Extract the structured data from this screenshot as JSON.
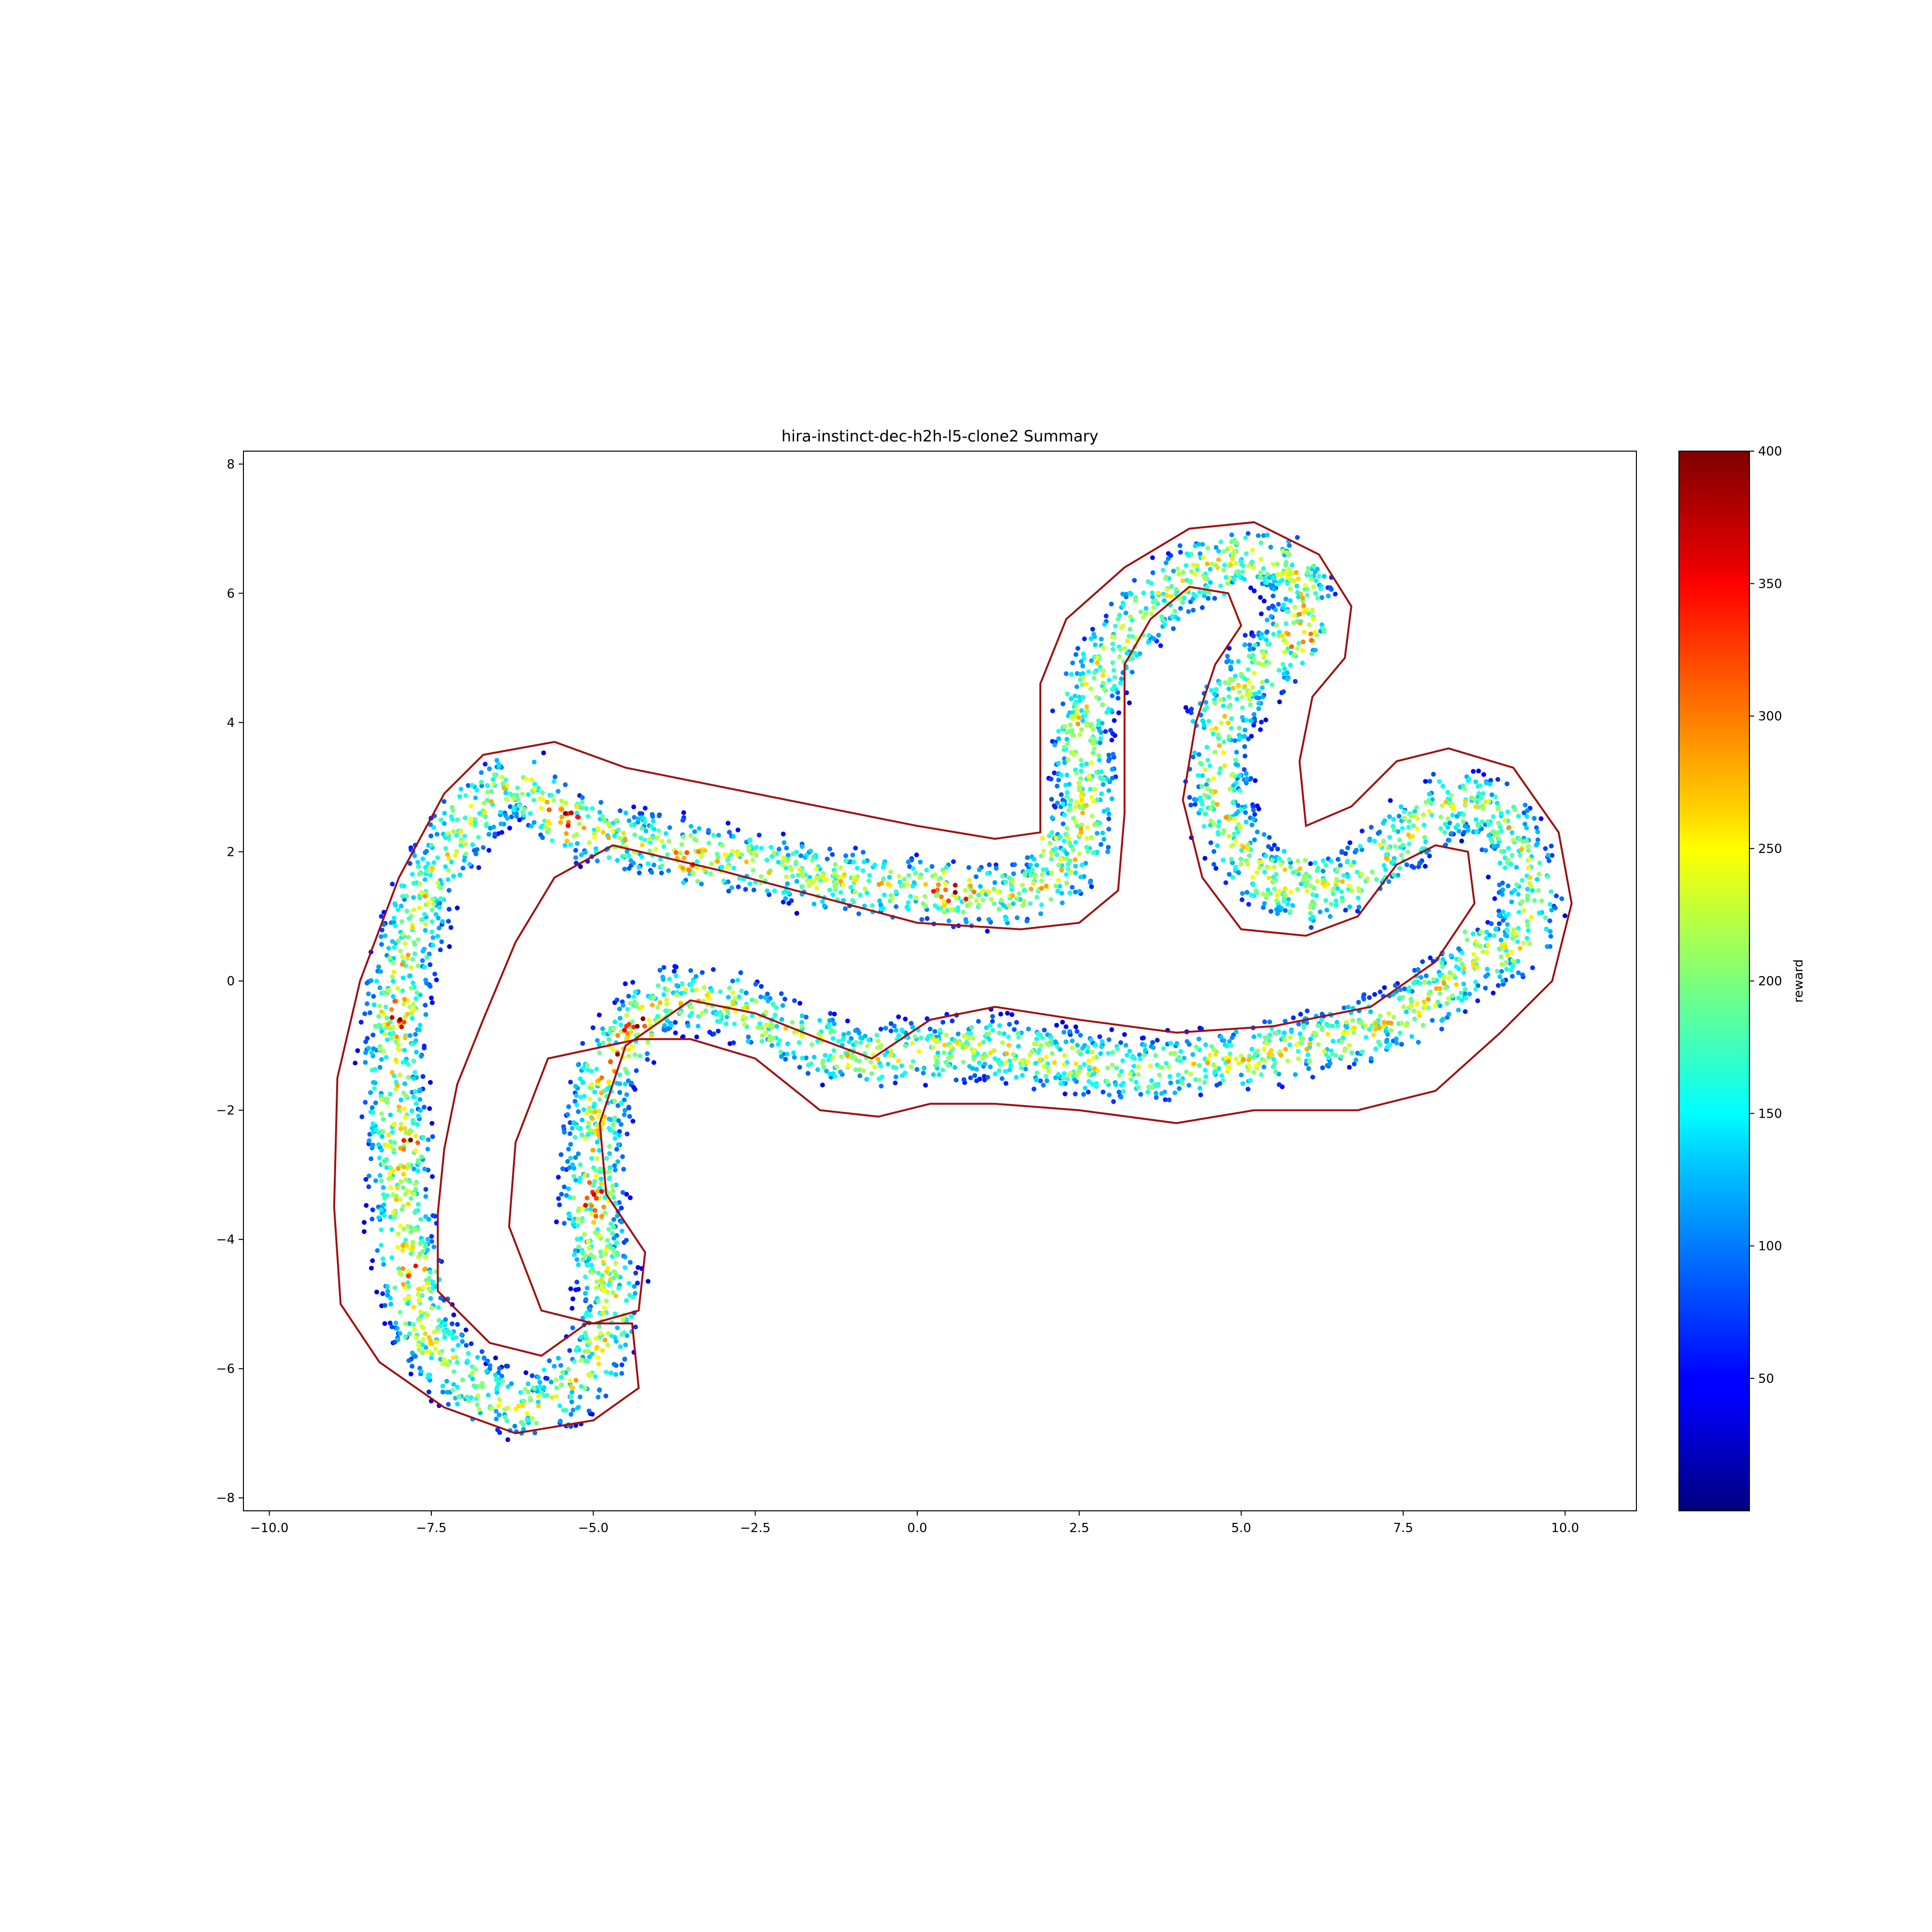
{
  "chart_data": {
    "type": "scatter",
    "title": "hira-instinct-dec-h2h-l5-clone2 Summary",
    "xlabel": "",
    "ylabel": "",
    "xlim": [
      -10.4,
      11.1
    ],
    "ylim": [
      -8.2,
      8.2
    ],
    "x_ticks": [
      -10.0,
      -7.5,
      -5.0,
      -2.5,
      0.0,
      2.5,
      5.0,
      7.5,
      10.0
    ],
    "x_tick_labels": [
      "−10.0",
      "−7.5",
      "−5.0",
      "−2.5",
      "0.0",
      "2.5",
      "5.0",
      "7.5",
      "10.0"
    ],
    "y_ticks": [
      -8,
      -6,
      -4,
      -2,
      0,
      2,
      4,
      6,
      8
    ],
    "y_tick_labels": [
      "−8",
      "−6",
      "−4",
      "−2",
      "0",
      "2",
      "4",
      "6",
      "8"
    ],
    "grid": false,
    "colormap": "jet",
    "colorbar": {
      "label": "reward",
      "range": [
        0,
        400
      ],
      "ticks": [
        50,
        100,
        150,
        200,
        250,
        300,
        350,
        400
      ],
      "tick_labels": [
        "50",
        "100",
        "150",
        "200",
        "250",
        "300",
        "350",
        "400"
      ]
    },
    "track_centerline": [
      [
        -5.4,
        2.4
      ],
      [
        -4.5,
        2.2
      ],
      [
        -3.0,
        1.9
      ],
      [
        -1.5,
        1.6
      ],
      [
        0.0,
        1.4
      ],
      [
        1.2,
        1.3
      ],
      [
        1.9,
        1.4
      ],
      [
        2.5,
        2.0
      ],
      [
        2.6,
        3.0
      ],
      [
        2.5,
        4.0
      ],
      [
        2.9,
        5.0
      ],
      [
        3.6,
        5.8
      ],
      [
        4.4,
        6.4
      ],
      [
        5.0,
        6.6
      ],
      [
        5.8,
        6.4
      ],
      [
        6.0,
        5.8
      ],
      [
        5.6,
        5.1
      ],
      [
        5.0,
        4.6
      ],
      [
        4.6,
        3.8
      ],
      [
        4.7,
        2.6
      ],
      [
        5.2,
        1.7
      ],
      [
        5.9,
        1.3
      ],
      [
        6.8,
        1.6
      ],
      [
        7.6,
        2.3
      ],
      [
        8.3,
        2.8
      ],
      [
        9.0,
        2.6
      ],
      [
        9.5,
        1.5
      ],
      [
        9.3,
        0.6
      ],
      [
        8.5,
        0.2
      ],
      [
        7.6,
        -0.5
      ],
      [
        6.5,
        -0.9
      ],
      [
        5.0,
        -1.2
      ],
      [
        3.5,
        -1.4
      ],
      [
        2.0,
        -1.2
      ],
      [
        1.0,
        -1.0
      ],
      [
        0.0,
        -1.1
      ],
      [
        -1.0,
        -1.2
      ],
      [
        -2.0,
        -0.8
      ],
      [
        -3.0,
        -0.3
      ],
      [
        -4.0,
        -0.3
      ],
      [
        -4.8,
        -1.3
      ],
      [
        -5.0,
        -2.5
      ],
      [
        -5.0,
        -3.8
      ],
      [
        -4.7,
        -5.0
      ],
      [
        -5.0,
        -6.0
      ],
      [
        -5.8,
        -6.6
      ],
      [
        -6.8,
        -6.4
      ],
      [
        -7.6,
        -5.5
      ],
      [
        -7.9,
        -4.2
      ],
      [
        -8.0,
        -3.0
      ],
      [
        -8.1,
        -1.5
      ],
      [
        -8.0,
        0.0
      ],
      [
        -7.6,
        1.4
      ],
      [
        -6.9,
        2.6
      ],
      [
        -6.2,
        3.1
      ],
      [
        -5.4,
        2.4
      ]
    ],
    "track_half_width": 0.62,
    "boundary_line": [
      [
        -9.0,
        -3.5
      ],
      [
        -8.95,
        -1.5
      ],
      [
        -8.6,
        0.0
      ],
      [
        -8.0,
        1.6
      ],
      [
        -7.3,
        2.9
      ],
      [
        -6.7,
        3.5
      ],
      [
        -5.6,
        3.7
      ],
      [
        -4.5,
        3.3
      ],
      [
        -3.0,
        3.0
      ],
      [
        -1.5,
        2.7
      ],
      [
        0.0,
        2.4
      ],
      [
        1.2,
        2.2
      ],
      [
        1.9,
        2.3
      ],
      [
        1.9,
        3.5
      ],
      [
        1.9,
        4.6
      ],
      [
        2.3,
        5.6
      ],
      [
        3.2,
        6.4
      ],
      [
        4.2,
        7.0
      ],
      [
        5.2,
        7.1
      ],
      [
        6.2,
        6.6
      ],
      [
        6.7,
        5.8
      ],
      [
        6.6,
        5.0
      ],
      [
        6.1,
        4.4
      ],
      [
        5.9,
        3.4
      ],
      [
        6.0,
        2.4
      ],
      [
        6.7,
        2.7
      ],
      [
        7.4,
        3.4
      ],
      [
        8.2,
        3.6
      ],
      [
        9.2,
        3.3
      ],
      [
        9.9,
        2.3
      ],
      [
        10.1,
        1.2
      ],
      [
        9.8,
        0.0
      ],
      [
        9.0,
        -0.8
      ],
      [
        8.0,
        -1.7
      ],
      [
        6.8,
        -2.0
      ],
      [
        5.2,
        -2.0
      ],
      [
        4.0,
        -2.2
      ],
      [
        2.5,
        -2.0
      ],
      [
        1.2,
        -1.9
      ],
      [
        0.2,
        -1.9
      ],
      [
        -0.6,
        -2.1
      ],
      [
        -1.5,
        -2.0
      ],
      [
        -2.5,
        -1.2
      ],
      [
        -3.5,
        -0.9
      ],
      [
        -4.3,
        -0.9
      ],
      [
        -5.7,
        -1.2
      ],
      [
        -6.2,
        -2.5
      ],
      [
        -6.3,
        -3.8
      ],
      [
        -5.8,
        -5.1
      ],
      [
        -5.0,
        -5.3
      ],
      [
        -4.3,
        -5.1
      ],
      [
        -4.2,
        -4.2
      ],
      [
        -4.8,
        -3.3
      ],
      [
        -4.9,
        -2.2
      ],
      [
        -4.5,
        -1.0
      ],
      [
        -3.5,
        -0.3
      ],
      [
        -2.5,
        -0.5
      ],
      [
        -1.5,
        -0.9
      ],
      [
        -0.7,
        -1.2
      ],
      [
        0.2,
        -0.6
      ],
      [
        1.2,
        -0.4
      ],
      [
        2.5,
        -0.6
      ],
      [
        4.0,
        -0.8
      ],
      [
        5.5,
        -0.7
      ],
      [
        7.0,
        -0.4
      ],
      [
        8.0,
        0.3
      ],
      [
        8.6,
        1.2
      ],
      [
        8.5,
        2.0
      ],
      [
        8.0,
        2.1
      ],
      [
        7.4,
        1.8
      ],
      [
        6.8,
        1.0
      ],
      [
        6.0,
        0.7
      ],
      [
        5.0,
        0.8
      ],
      [
        4.4,
        1.6
      ],
      [
        4.1,
        2.8
      ],
      [
        4.3,
        4.0
      ],
      [
        4.6,
        4.9
      ],
      [
        5.0,
        5.5
      ],
      [
        4.8,
        6.0
      ],
      [
        4.2,
        6.1
      ],
      [
        3.6,
        5.6
      ],
      [
        3.2,
        4.9
      ],
      [
        3.2,
        3.8
      ],
      [
        3.2,
        2.6
      ],
      [
        3.1,
        1.4
      ],
      [
        2.5,
        0.9
      ],
      [
        1.6,
        0.8
      ],
      [
        0.0,
        0.9
      ],
      [
        -1.5,
        1.3
      ],
      [
        -3.0,
        1.7
      ],
      [
        -4.7,
        2.1
      ],
      [
        -5.6,
        1.6
      ],
      [
        -6.2,
        0.6
      ],
      [
        -6.7,
        -0.6
      ],
      [
        -7.1,
        -1.6
      ],
      [
        -7.3,
        -2.6
      ],
      [
        -7.4,
        -3.6
      ],
      [
        -7.4,
        -4.8
      ],
      [
        -6.6,
        -5.6
      ],
      [
        -5.8,
        -5.8
      ],
      [
        -5.1,
        -5.3
      ],
      [
        -4.4,
        -5.3
      ],
      [
        -4.3,
        -6.3
      ],
      [
        -5.0,
        -6.8
      ],
      [
        -6.2,
        -7.0
      ],
      [
        -7.3,
        -6.6
      ],
      [
        -8.3,
        -5.9
      ],
      [
        -8.9,
        -5.0
      ],
      [
        -9.0,
        -3.5
      ]
    ],
    "hotspots": [
      [
        -5.4,
        2.5
      ],
      [
        1.9,
        2.2
      ],
      [
        4.8,
        5.9
      ],
      [
        5.9,
        1.9
      ],
      [
        8.5,
        0.8
      ],
      [
        -4.3,
        -0.7
      ],
      [
        -4.7,
        -1.2
      ],
      [
        -5.0,
        -3.4
      ],
      [
        -7.7,
        -4.5
      ],
      [
        -5.8,
        -5.7
      ],
      [
        0.5,
        1.4
      ],
      [
        -3.5,
        1.8
      ],
      [
        6.0,
        5.3
      ],
      [
        -8.0,
        -0.5
      ],
      [
        -7.8,
        -2.5
      ]
    ]
  }
}
